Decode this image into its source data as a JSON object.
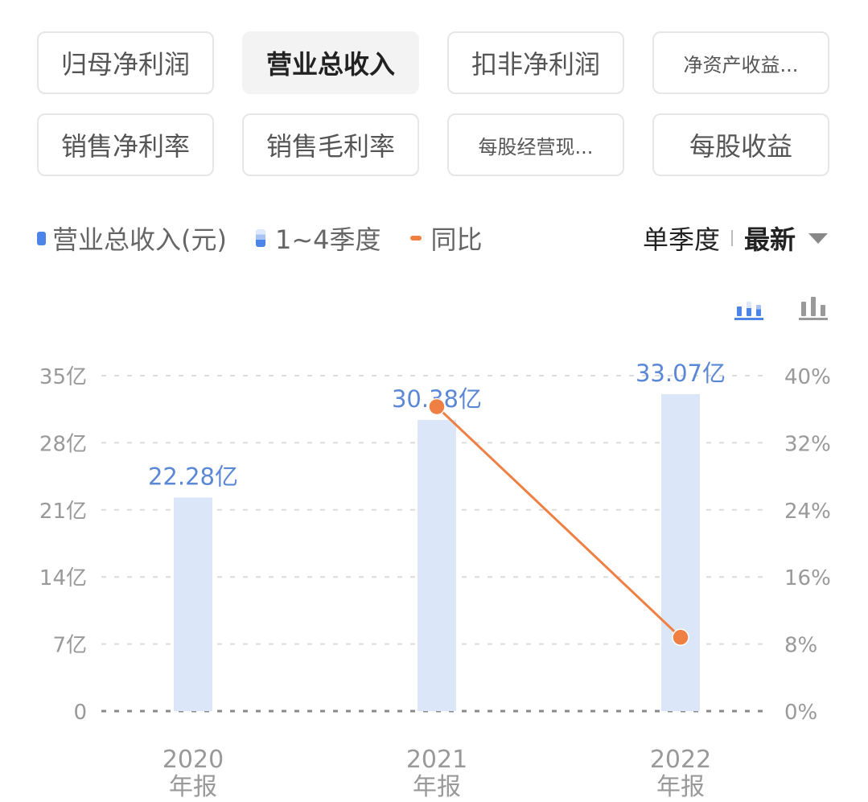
{
  "tabs": [
    {
      "label": "归母净利润",
      "active": false,
      "size": "normal"
    },
    {
      "label": "营业总收入",
      "active": true,
      "size": "normal"
    },
    {
      "label": "扣非净利润",
      "active": false,
      "size": "normal"
    },
    {
      "label": "净资产收益...",
      "active": false,
      "size": "small"
    },
    {
      "label": "销售净利率",
      "active": false,
      "size": "normal"
    },
    {
      "label": "销售毛利率",
      "active": false,
      "size": "normal"
    },
    {
      "label": "每股经营现...",
      "active": false,
      "size": "small"
    },
    {
      "label": "每股收益",
      "active": false,
      "size": "normal"
    }
  ],
  "legend": {
    "revenue": "营业总收入(元)",
    "quarters": "1~4季度",
    "yoy": "同比"
  },
  "period": {
    "mode": "单季度",
    "latest": "最新"
  },
  "colors": {
    "bar": "#dbe6f9",
    "bar_label": "#5b88d6",
    "line": "#f07f43",
    "axis_text": "#999999",
    "accent_blue": "#4d84e8"
  },
  "chart_data": {
    "type": "bar",
    "title": "营业总收入",
    "categories": [
      "2020年报",
      "2021年报",
      "2022年报"
    ],
    "category_lines": [
      [
        "2020",
        "年报"
      ],
      [
        "2021",
        "年报"
      ],
      [
        "2022",
        "年报"
      ]
    ],
    "series": [
      {
        "name": "营业总收入(元)",
        "type": "bar",
        "axis": "left",
        "values": [
          22.28,
          30.38,
          33.07
        ],
        "labels": [
          "22.28亿",
          "30.38亿",
          "33.07亿"
        ],
        "unit": "亿"
      },
      {
        "name": "同比",
        "type": "line",
        "axis": "right",
        "values": [
          null,
          36.3,
          8.8
        ],
        "unit": "%"
      }
    ],
    "left_axis": {
      "ticks": [
        "0",
        "7亿",
        "14亿",
        "21亿",
        "28亿",
        "35亿"
      ],
      "values": [
        0,
        7,
        14,
        21,
        28,
        35
      ],
      "ylim": [
        0,
        35
      ]
    },
    "right_axis": {
      "ticks": [
        "0%",
        "8%",
        "16%",
        "24%",
        "32%",
        "40%"
      ],
      "values": [
        0,
        8,
        16,
        24,
        32,
        40
      ],
      "ylim": [
        0,
        40
      ]
    },
    "grid": "dashed",
    "legend_position": "top"
  }
}
